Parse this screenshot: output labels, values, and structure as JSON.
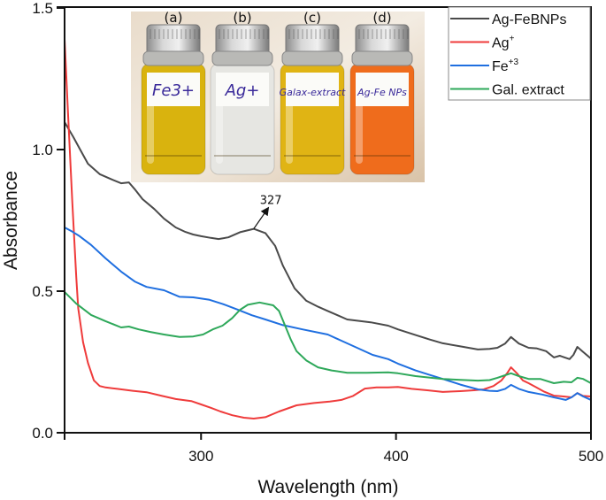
{
  "chart_data": {
    "type": "line",
    "title": "",
    "xlabel": "Wavelength (nm)",
    "ylabel": "Absorbance",
    "xlim": [
      230,
      500
    ],
    "ylim": [
      0.0,
      1.5
    ],
    "xticks": [
      300,
      400,
      500
    ],
    "xtick_labels": [
      "300",
      "400",
      "500"
    ],
    "yticks": [
      0.0,
      0.5,
      1.0,
      1.5
    ],
    "ytick_labels": [
      "0.0",
      "0.5",
      "1.0",
      "1.5"
    ],
    "grid": false,
    "legend_position": "top-right",
    "series": [
      {
        "name": "Ag-FeBNPs",
        "label_main": "Ag-FeBNPs",
        "label_sup": "",
        "color": "#4a4a4a",
        "points": [
          [
            230,
            1.097
          ],
          [
            234.5,
            1.044
          ],
          [
            238,
            1.0
          ],
          [
            242,
            0.95
          ],
          [
            248,
            0.913
          ],
          [
            254,
            0.895
          ],
          [
            259,
            0.881
          ],
          [
            263,
            0.884
          ],
          [
            266,
            0.86
          ],
          [
            270,
            0.825
          ],
          [
            276,
            0.79
          ],
          [
            281,
            0.756
          ],
          [
            287,
            0.725
          ],
          [
            292,
            0.709
          ],
          [
            296,
            0.7
          ],
          [
            300,
            0.694
          ],
          [
            305,
            0.688
          ],
          [
            309,
            0.684
          ],
          [
            314,
            0.69
          ],
          [
            320,
            0.708
          ],
          [
            327,
            0.72
          ],
          [
            333,
            0.705
          ],
          [
            338,
            0.66
          ],
          [
            342,
            0.59
          ],
          [
            348,
            0.51
          ],
          [
            354,
            0.466
          ],
          [
            360,
            0.445
          ],
          [
            365,
            0.43
          ],
          [
            370,
            0.415
          ],
          [
            375,
            0.4
          ],
          [
            381,
            0.395
          ],
          [
            387,
            0.39
          ],
          [
            396,
            0.378
          ],
          [
            401,
            0.365
          ],
          [
            410,
            0.345
          ],
          [
            417,
            0.33
          ],
          [
            424,
            0.316
          ],
          [
            433,
            0.305
          ],
          [
            442,
            0.294
          ],
          [
            448,
            0.296
          ],
          [
            452,
            0.3
          ],
          [
            456,
            0.315
          ],
          [
            459,
            0.338
          ],
          [
            463,
            0.315
          ],
          [
            468,
            0.3
          ],
          [
            472,
            0.298
          ],
          [
            477,
            0.288
          ],
          [
            481,
            0.266
          ],
          [
            484,
            0.272
          ],
          [
            489,
            0.26
          ],
          [
            491,
            0.275
          ],
          [
            493,
            0.303
          ],
          [
            496,
            0.285
          ],
          [
            500,
            0.262
          ]
        ]
      },
      {
        "name": "Ag+",
        "label_main": "Ag",
        "label_sup": "+",
        "color": "#ef3b3b",
        "points": [
          [
            230,
            1.39
          ],
          [
            231.8,
            1.12
          ],
          [
            234,
            0.81
          ],
          [
            236,
            0.55
          ],
          [
            237,
            0.44
          ],
          [
            239.5,
            0.32
          ],
          [
            242,
            0.247
          ],
          [
            245,
            0.185
          ],
          [
            248,
            0.165
          ],
          [
            251,
            0.16
          ],
          [
            257,
            0.155
          ],
          [
            265,
            0.148
          ],
          [
            272,
            0.143
          ],
          [
            280,
            0.13
          ],
          [
            287,
            0.119
          ],
          [
            295,
            0.112
          ],
          [
            300,
            0.1
          ],
          [
            305,
            0.088
          ],
          [
            310,
            0.075
          ],
          [
            316,
            0.062
          ],
          [
            322,
            0.053
          ],
          [
            327,
            0.05
          ],
          [
            333,
            0.055
          ],
          [
            340,
            0.075
          ],
          [
            349,
            0.097
          ],
          [
            358,
            0.105
          ],
          [
            366,
            0.11
          ],
          [
            372,
            0.116
          ],
          [
            378,
            0.13
          ],
          [
            384,
            0.156
          ],
          [
            390,
            0.16
          ],
          [
            396,
            0.16
          ],
          [
            401,
            0.162
          ],
          [
            408,
            0.155
          ],
          [
            416,
            0.15
          ],
          [
            424,
            0.144
          ],
          [
            433,
            0.147
          ],
          [
            440,
            0.15
          ],
          [
            445,
            0.153
          ],
          [
            450,
            0.165
          ],
          [
            454,
            0.184
          ],
          [
            457,
            0.21
          ],
          [
            459,
            0.231
          ],
          [
            462,
            0.21
          ],
          [
            465,
            0.185
          ],
          [
            468,
            0.175
          ],
          [
            472,
            0.16
          ],
          [
            476,
            0.145
          ],
          [
            481,
            0.131
          ],
          [
            486,
            0.128
          ],
          [
            490,
            0.125
          ],
          [
            493,
            0.14
          ],
          [
            496,
            0.13
          ],
          [
            500,
            0.128
          ]
        ]
      },
      {
        "name": "Fe+3",
        "label_main": "Fe",
        "label_sup": "+3",
        "color": "#1f6fe0",
        "points": [
          [
            230,
            0.725
          ],
          [
            234,
            0.71
          ],
          [
            237.7,
            0.694
          ],
          [
            243.6,
            0.663
          ],
          [
            251,
            0.616
          ],
          [
            259,
            0.569
          ],
          [
            266,
            0.534
          ],
          [
            272,
            0.515
          ],
          [
            281,
            0.503
          ],
          [
            289,
            0.48
          ],
          [
            296,
            0.478
          ],
          [
            304,
            0.47
          ],
          [
            311,
            0.455
          ],
          [
            319,
            0.434
          ],
          [
            326,
            0.415
          ],
          [
            333,
            0.4
          ],
          [
            342,
            0.38
          ],
          [
            352,
            0.365
          ],
          [
            365,
            0.347
          ],
          [
            372,
            0.325
          ],
          [
            380,
            0.3
          ],
          [
            388,
            0.275
          ],
          [
            396,
            0.26
          ],
          [
            401,
            0.244
          ],
          [
            410,
            0.22
          ],
          [
            417,
            0.205
          ],
          [
            424,
            0.19
          ],
          [
            433,
            0.17
          ],
          [
            442,
            0.153
          ],
          [
            448,
            0.148
          ],
          [
            452,
            0.147
          ],
          [
            456,
            0.155
          ],
          [
            459,
            0.169
          ],
          [
            463,
            0.155
          ],
          [
            468,
            0.144
          ],
          [
            475,
            0.135
          ],
          [
            481,
            0.125
          ],
          [
            487,
            0.116
          ],
          [
            490,
            0.125
          ],
          [
            493,
            0.14
          ],
          [
            496,
            0.128
          ],
          [
            500,
            0.116
          ]
        ]
      },
      {
        "name": "Gal. extract",
        "label_main": "Gal. extract",
        "label_sup": "",
        "color": "#2ea85a",
        "points": [
          [
            230,
            0.497
          ],
          [
            236,
            0.456
          ],
          [
            243.6,
            0.416
          ],
          [
            251,
            0.394
          ],
          [
            259,
            0.372
          ],
          [
            263,
            0.375
          ],
          [
            268,
            0.365
          ],
          [
            274,
            0.356
          ],
          [
            281,
            0.347
          ],
          [
            289,
            0.338
          ],
          [
            296,
            0.34
          ],
          [
            301,
            0.347
          ],
          [
            306,
            0.365
          ],
          [
            311,
            0.378
          ],
          [
            316,
            0.405
          ],
          [
            320,
            0.434
          ],
          [
            324,
            0.452
          ],
          [
            330,
            0.46
          ],
          [
            337,
            0.45
          ],
          [
            340,
            0.43
          ],
          [
            343,
            0.38
          ],
          [
            346,
            0.33
          ],
          [
            349,
            0.288
          ],
          [
            354,
            0.255
          ],
          [
            360,
            0.231
          ],
          [
            367,
            0.22
          ],
          [
            375,
            0.212
          ],
          [
            385,
            0.212
          ],
          [
            396,
            0.213
          ],
          [
            401,
            0.21
          ],
          [
            410,
            0.2
          ],
          [
            417,
            0.195
          ],
          [
            424,
            0.19
          ],
          [
            433,
            0.187
          ],
          [
            442,
            0.184
          ],
          [
            448,
            0.186
          ],
          [
            452,
            0.194
          ],
          [
            456,
            0.203
          ],
          [
            459,
            0.21
          ],
          [
            463,
            0.2
          ],
          [
            468,
            0.19
          ],
          [
            474,
            0.19
          ],
          [
            481,
            0.175
          ],
          [
            486,
            0.18
          ],
          [
            490,
            0.178
          ],
          [
            493,
            0.194
          ],
          [
            496,
            0.19
          ],
          [
            500,
            0.175
          ]
        ]
      }
    ],
    "annotations": [
      {
        "text": "327",
        "x": 327,
        "y": 0.72,
        "arrow": true
      }
    ],
    "inset_photo": {
      "description": "Photo of four glass vials with metal caps",
      "vials": [
        {
          "label": "(a)",
          "handwritten": "Fe3+",
          "liquid_color": "#d9b30e"
        },
        {
          "label": "(b)",
          "handwritten": "Ag+",
          "liquid_color": "#e6e6e2"
        },
        {
          "label": "(c)",
          "handwritten": "Galax-extract",
          "liquid_color": "#e0b414"
        },
        {
          "label": "(d)",
          "handwritten": "Ag-Fe NPs",
          "liquid_color": "#ef6c1c"
        }
      ]
    }
  }
}
